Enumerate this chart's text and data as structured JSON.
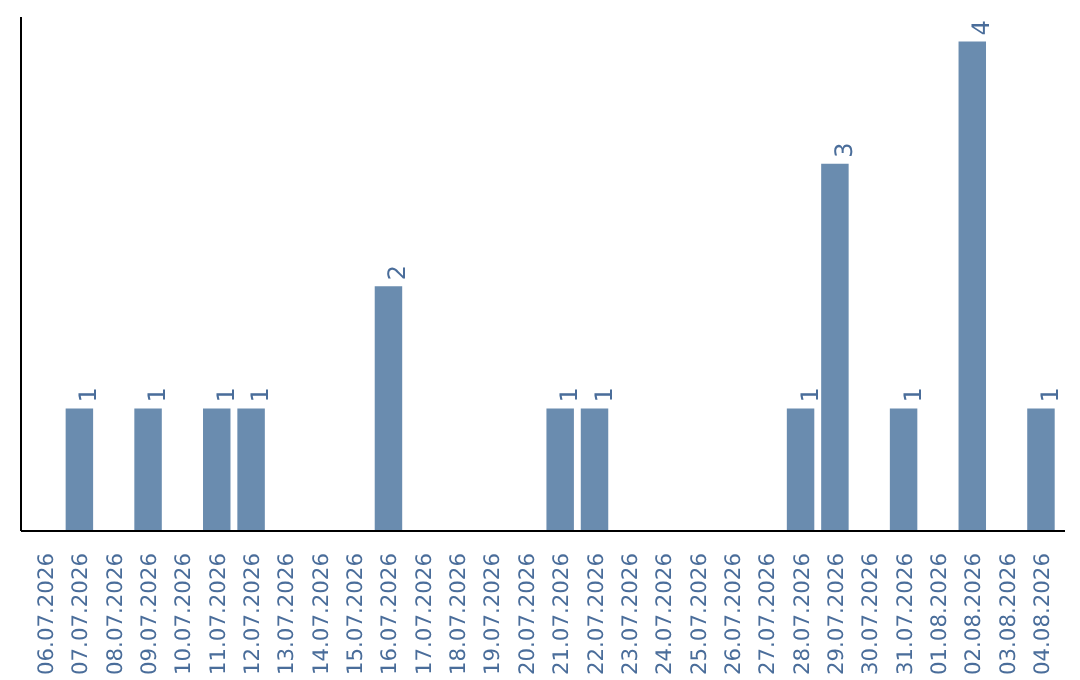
{
  "chart_data": {
    "type": "bar",
    "categories": [
      "06.07.2026",
      "07.07.2026",
      "08.07.2026",
      "09.07.2026",
      "10.07.2026",
      "11.07.2026",
      "12.07.2026",
      "13.07.2026",
      "14.07.2026",
      "15.07.2026",
      "16.07.2026",
      "17.07.2026",
      "18.07.2026",
      "19.07.2026",
      "20.07.2026",
      "21.07.2026",
      "22.07.2026",
      "23.07.2026",
      "24.07.2026",
      "25.07.2026",
      "26.07.2026",
      "27.07.2026",
      "28.07.2026",
      "29.07.2026",
      "30.07.2026",
      "31.07.2026",
      "01.08.2026",
      "02.08.2026",
      "03.08.2026",
      "04.08.2026"
    ],
    "values": [
      0,
      1,
      0,
      1,
      0,
      1,
      1,
      0,
      0,
      0,
      2,
      0,
      0,
      0,
      0,
      1,
      1,
      0,
      0,
      0,
      0,
      0,
      1,
      3,
      0,
      1,
      0,
      4,
      0,
      1
    ],
    "value_labels": [
      null,
      "1",
      null,
      "1",
      null,
      "1",
      "1",
      null,
      null,
      null,
      "2",
      null,
      null,
      null,
      null,
      "1",
      "1",
      null,
      null,
      null,
      null,
      null,
      "1",
      "3",
      null,
      "1",
      null,
      "4",
      null,
      "1"
    ],
    "color": "#6a8caf",
    "ylim": [
      0,
      4.2
    ],
    "tick_labels": "x",
    "grid": false
  }
}
